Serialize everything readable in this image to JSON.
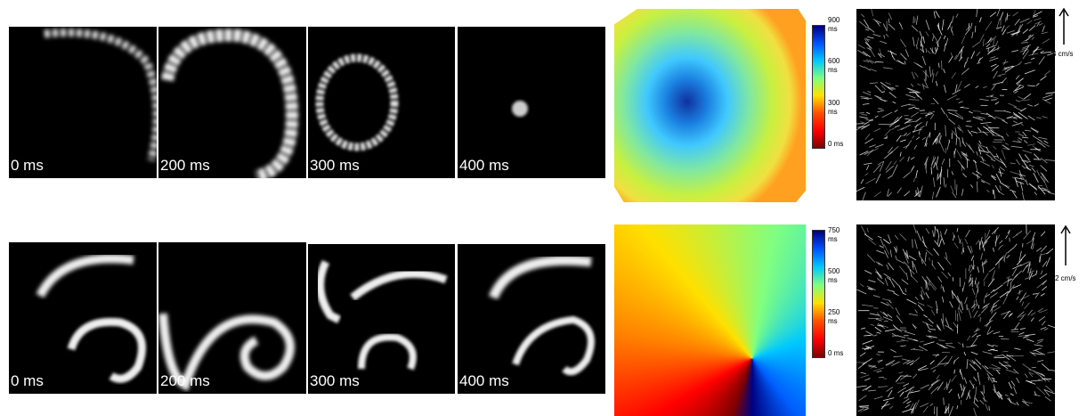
{
  "rows": [
    {
      "frames": [
        "0 ms",
        "200 ms",
        "300 ms",
        "400 ms"
      ],
      "colorbar_ticks": [
        "900 ms",
        "600 ms",
        "300 ms",
        "0 ms"
      ],
      "scale": "4 cm/s"
    },
    {
      "frames": [
        "0 ms",
        "200 ms",
        "300 ms",
        "400 ms"
      ],
      "colorbar_ticks": [
        "750 ms",
        "500 ms",
        "250 ms",
        "0 ms"
      ],
      "scale": "2 cm/s"
    }
  ]
}
